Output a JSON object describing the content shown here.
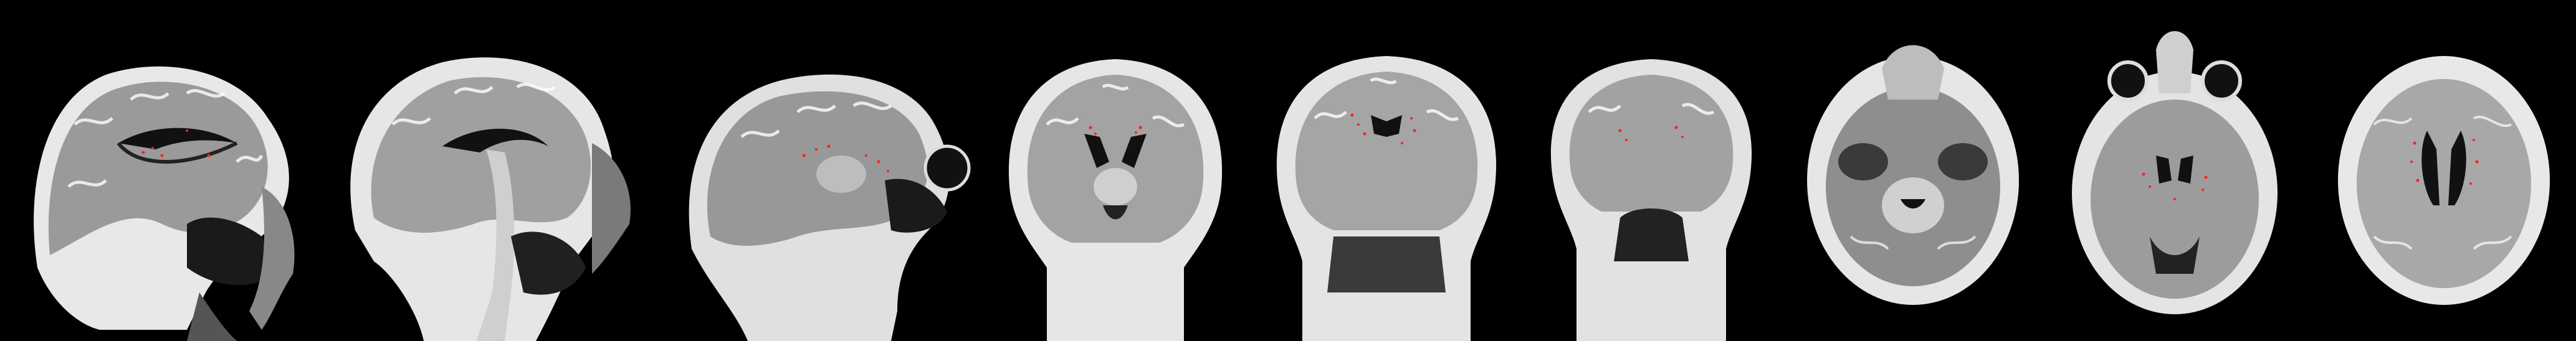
{
  "figure": {
    "panels": [
      {
        "id": "p1",
        "view": "sagittal",
        "lesion_color": "#ff2020"
      },
      {
        "id": "p2",
        "view": "sagittal",
        "lesion_color": "#ff2020"
      },
      {
        "id": "p3",
        "view": "sagittal",
        "lesion_color": "#ff2020"
      },
      {
        "id": "p4",
        "view": "coronal",
        "lesion_color": "#ff2020"
      },
      {
        "id": "p5",
        "view": "coronal",
        "lesion_color": "#ff2020"
      },
      {
        "id": "p6",
        "view": "coronal",
        "lesion_color": "#ff2020"
      },
      {
        "id": "p7",
        "view": "axial",
        "lesion_color": "#ff2020"
      },
      {
        "id": "p8",
        "view": "axial",
        "lesion_color": "#ff2020"
      },
      {
        "id": "p9",
        "view": "axial",
        "lesion_color": "#ff2020"
      }
    ]
  }
}
